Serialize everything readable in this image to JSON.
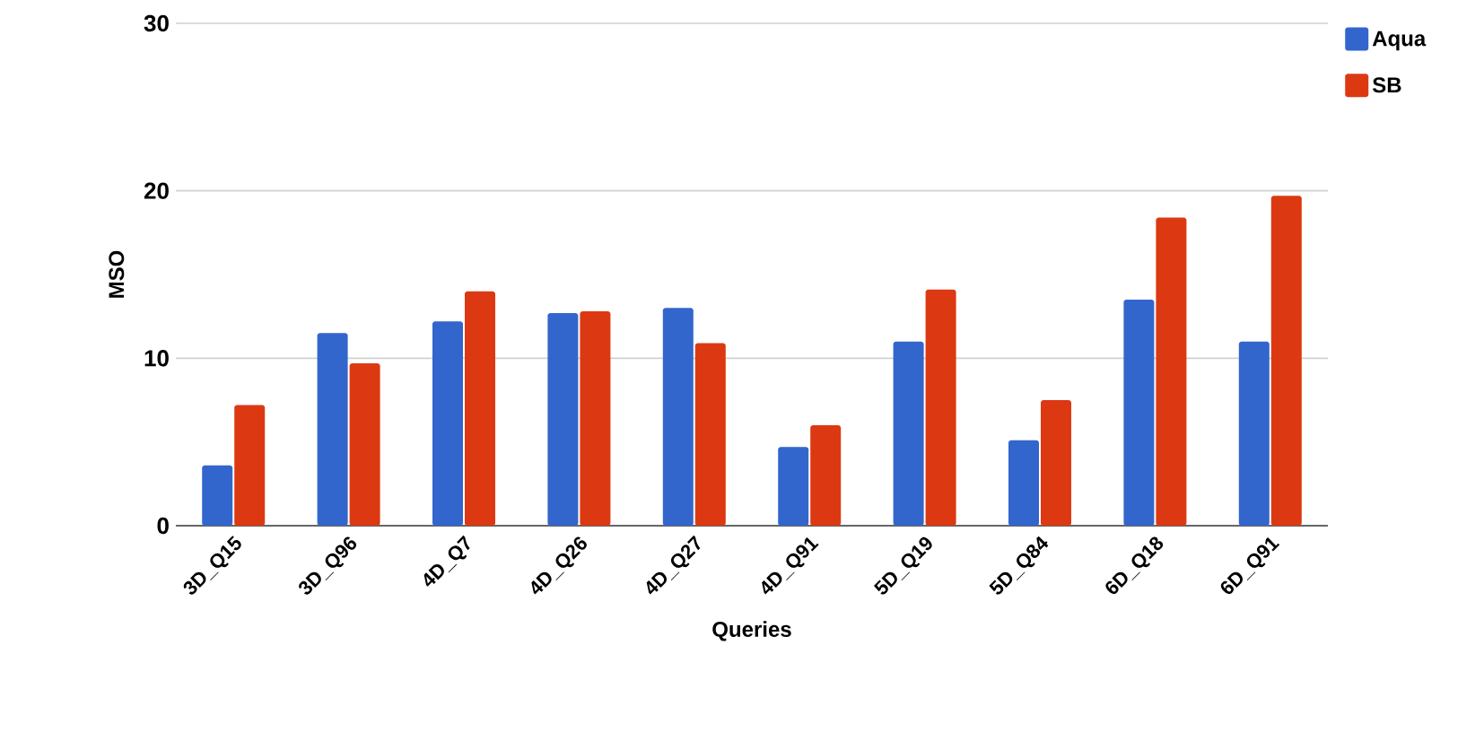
{
  "chart_data": {
    "type": "bar",
    "xlabel": "Queries",
    "ylabel": "MSO",
    "categories": [
      "3D_Q15",
      "3D_Q96",
      "4D_Q7",
      "4D_Q26",
      "4D_Q27",
      "4D_Q91",
      "5D_Q19",
      "5D_Q84",
      "6D_Q18",
      "6D_Q91"
    ],
    "series": [
      {
        "name": "Aqua",
        "color": "#3366cc",
        "values": [
          3.6,
          11.5,
          12.2,
          12.7,
          13.0,
          4.7,
          11.0,
          5.1,
          13.5,
          11.0
        ]
      },
      {
        "name": "SB",
        "color": "#dc3912",
        "values": [
          7.2,
          9.7,
          14.0,
          12.8,
          10.9,
          6.0,
          14.1,
          7.5,
          18.4,
          19.7
        ]
      }
    ],
    "ylim": [
      0,
      30
    ],
    "yticks": [
      0,
      10,
      20,
      30
    ],
    "grid": "y",
    "legend": "top right"
  }
}
